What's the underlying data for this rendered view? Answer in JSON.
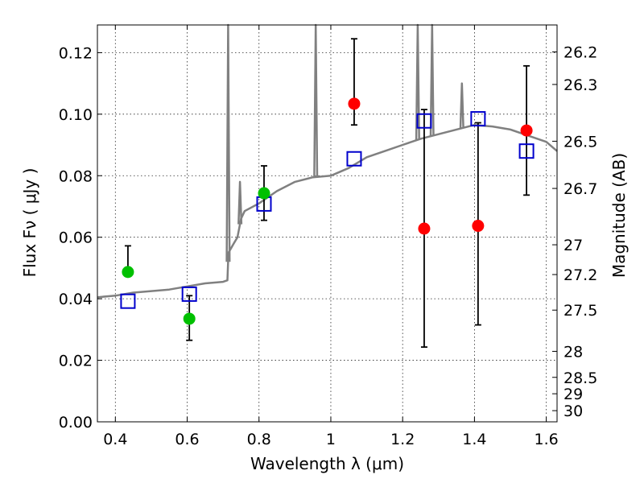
{
  "chart_data": {
    "type": "scatter",
    "xlabel": "Wavelength  λ (μm)",
    "ylabel": "Flux  Fν  ( μJy )",
    "ylabel_right": "Magnitude (AB)",
    "xlim": [
      0.35,
      1.63
    ],
    "ylim": [
      0.0,
      0.129
    ],
    "grid": true,
    "x_ticks": [
      "0.4",
      "0.6",
      "0.8",
      "1",
      "1.2",
      "1.4",
      "1.6"
    ],
    "x_tick_values": [
      0.4,
      0.6,
      0.8,
      1.0,
      1.2,
      1.4,
      1.6
    ],
    "y_ticks": [
      "0.00",
      "0.02",
      "0.04",
      "0.06",
      "0.08",
      "0.10",
      "0.12"
    ],
    "y_tick_values": [
      0.0,
      0.02,
      0.04,
      0.06,
      0.08,
      0.1,
      0.12
    ],
    "mag_ticks": [
      "26.2",
      "26.3",
      "26.5",
      "26.7",
      "27",
      "27.2",
      "27.5",
      "28",
      "28.5",
      "29",
      "30"
    ],
    "mag_tick_values": [
      26.2,
      26.3,
      26.5,
      26.7,
      27.0,
      27.2,
      27.5,
      28.0,
      28.5,
      29.0,
      30.0
    ],
    "colors": {
      "green_points": "#00c000",
      "red_points": "#ff0000",
      "model_boxes": "#0000cc",
      "sed_curve": "#808080"
    },
    "series": [
      {
        "kind": "errorbar_points",
        "color": "green",
        "x": [
          0.435,
          0.606,
          0.814
        ],
        "y": [
          0.0487,
          0.0335,
          0.0743
        ],
        "yerr_low": [
          0.0487,
          0.0265,
          0.0655
        ],
        "yerr_high": [
          0.0572,
          0.041,
          0.0832
        ]
      },
      {
        "kind": "errorbar_points",
        "color": "red",
        "x": [
          1.065,
          1.26,
          1.41,
          1.545
        ],
        "y": [
          0.1034,
          0.0628,
          0.0637,
          0.0947
        ],
        "yerr_low": [
          0.0965,
          0.0243,
          0.0315,
          0.0737
        ],
        "yerr_high": [
          0.1245,
          0.1015,
          0.0972,
          0.1157
        ]
      },
      {
        "kind": "model_boxes",
        "color": "blue",
        "x": [
          0.435,
          0.606,
          0.814,
          1.065,
          1.26,
          1.41,
          1.545
        ],
        "y": [
          0.0392,
          0.0415,
          0.0708,
          0.0855,
          0.0978,
          0.0985,
          0.088
        ]
      },
      {
        "kind": "sed_line",
        "color": "gray",
        "x": [
          0.35,
          0.4,
          0.45,
          0.5,
          0.55,
          0.6,
          0.65,
          0.7,
          0.712,
          0.715,
          0.72,
          0.73,
          0.74,
          0.75,
          0.76,
          0.8,
          0.85,
          0.9,
          0.95,
          1.0,
          1.05,
          1.1,
          1.15,
          1.2,
          1.25,
          1.3,
          1.35,
          1.4,
          1.45,
          1.5,
          1.55,
          1.6,
          1.63
        ],
        "y": [
          0.0405,
          0.041,
          0.042,
          0.0425,
          0.043,
          0.044,
          0.045,
          0.0455,
          0.046,
          0.055,
          0.056,
          0.058,
          0.06,
          0.066,
          0.0685,
          0.071,
          0.075,
          0.078,
          0.0795,
          0.08,
          0.0825,
          0.086,
          0.088,
          0.09,
          0.092,
          0.0935,
          0.095,
          0.0965,
          0.096,
          0.095,
          0.093,
          0.091,
          0.088
        ]
      },
      {
        "kind": "emission_lines",
        "color": "gray",
        "x": [
          0.714,
          0.747,
          0.958,
          1.242,
          1.282,
          1.365
        ],
        "y": [
          0.129,
          0.078,
          0.129,
          0.129,
          0.129,
          0.11
        ]
      }
    ]
  }
}
